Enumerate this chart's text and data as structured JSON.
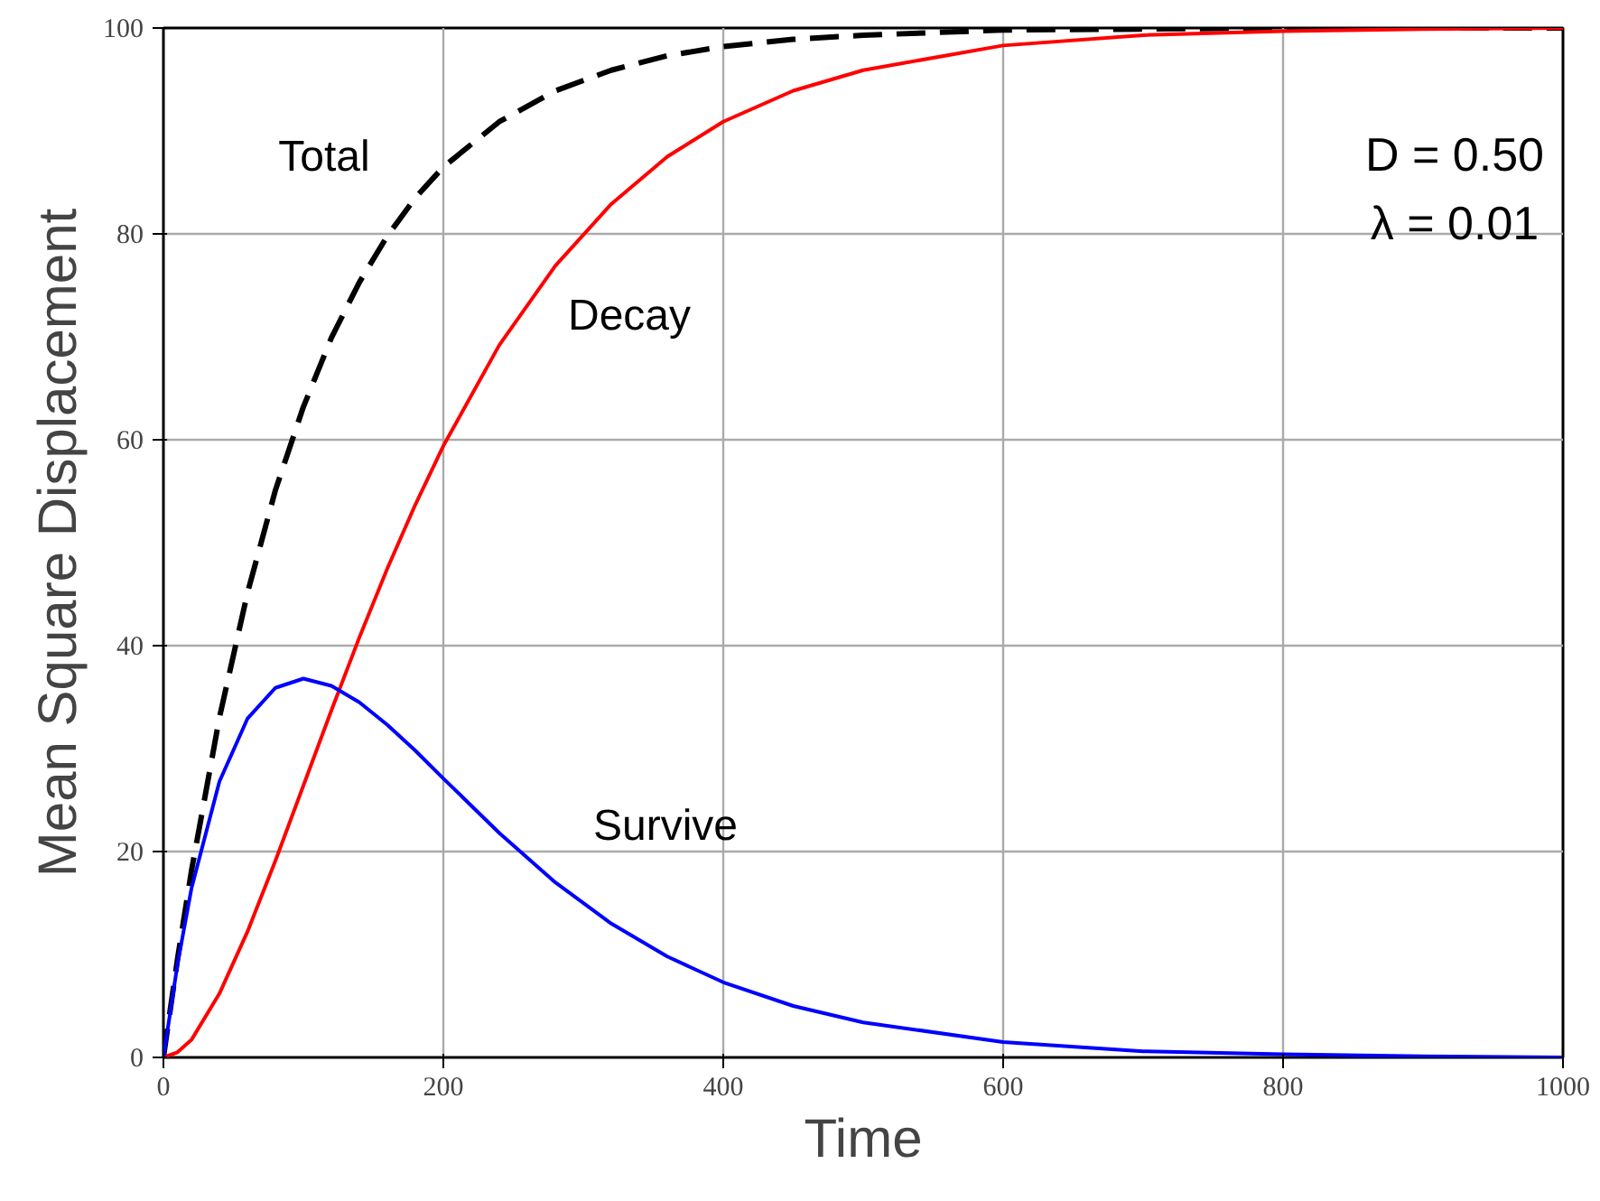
{
  "chart_data": {
    "type": "line",
    "xlabel": "Time",
    "ylabel": "Mean Square Displacement",
    "x": [
      0,
      10,
      20,
      40,
      60,
      80,
      100,
      120,
      140,
      160,
      180,
      200,
      240,
      280,
      320,
      360,
      400,
      450,
      500,
      600,
      700,
      800,
      900,
      1000
    ],
    "xlim": [
      0,
      1000
    ],
    "xticks": [
      0,
      200,
      400,
      600,
      800,
      1000
    ],
    "ylim": [
      0,
      100
    ],
    "yticks": [
      0,
      20,
      40,
      60,
      80,
      100
    ],
    "grid": true,
    "series": [
      {
        "name": "Total",
        "color": "#000000",
        "line_style": "dashed",
        "values": [
          0,
          9.5,
          18.1,
          33.0,
          45.1,
          55.1,
          63.2,
          69.9,
          75.3,
          79.8,
          83.5,
          86.5,
          90.9,
          93.9,
          95.9,
          97.3,
          98.2,
          98.9,
          99.3,
          99.8,
          99.9,
          100.0,
          100.0,
          100.0
        ]
      },
      {
        "name": "Decay",
        "color": "#ff0000",
        "line_style": "solid",
        "values": [
          0,
          0.5,
          1.7,
          6.2,
          12.2,
          19.1,
          26.4,
          33.7,
          40.8,
          47.5,
          53.7,
          59.4,
          69.2,
          76.9,
          82.9,
          87.5,
          90.9,
          93.9,
          95.9,
          98.3,
          99.3,
          99.7,
          99.9,
          100.0
        ]
      },
      {
        "name": "Survive",
        "color": "#0000ff",
        "line_style": "solid",
        "values": [
          0,
          9.0,
          16.4,
          26.8,
          32.9,
          35.9,
          36.8,
          36.1,
          34.5,
          32.3,
          29.8,
          27.1,
          21.8,
          17.0,
          13.0,
          9.8,
          7.3,
          5.0,
          3.4,
          1.5,
          0.6,
          0.3,
          0.1,
          0.0
        ]
      }
    ],
    "annotations": [
      "D = 0.50",
      "λ = 0.01"
    ]
  }
}
